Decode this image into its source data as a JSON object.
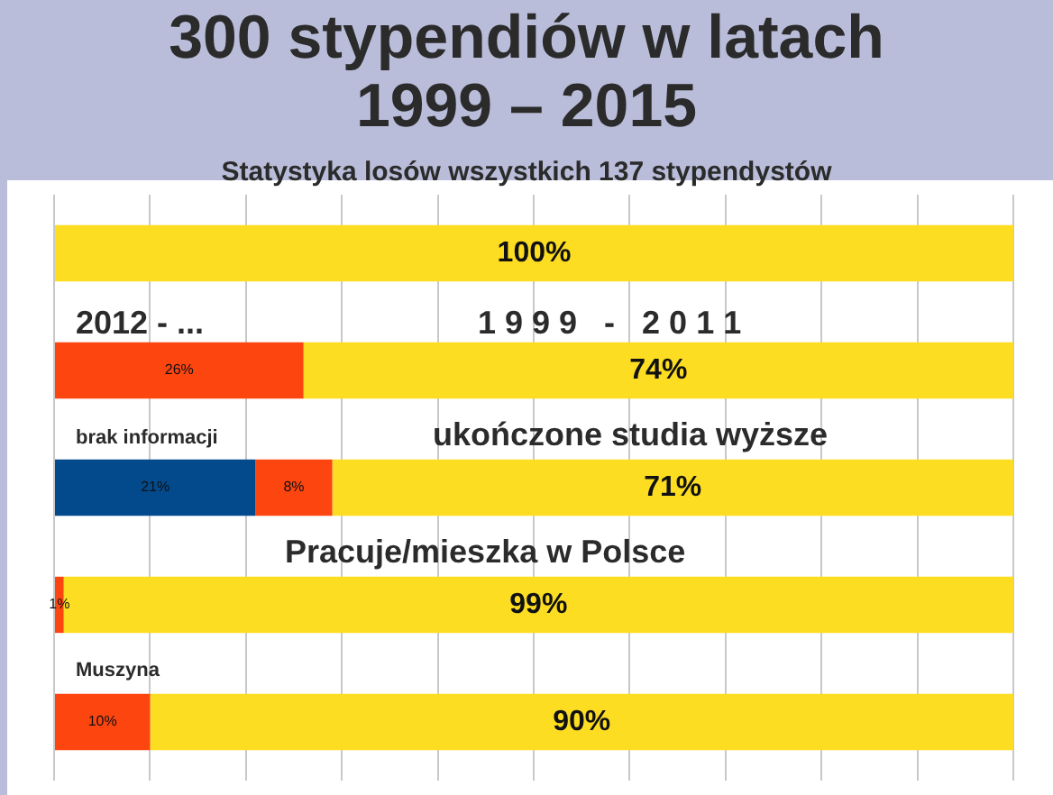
{
  "chart_data": {
    "type": "bar",
    "orientation": "horizontal",
    "stacked": true,
    "title": "300 stypendiów w latach 1999 – 2015",
    "subtitle": "Statystyka losów wszystkich 137 stypendystów",
    "categories": [
      null,
      null,
      null,
      null,
      null
    ],
    "series": [
      {
        "color": "#034a8c",
        "values": [
          null,
          null,
          21,
          null,
          null
        ],
        "value_labels": [
          null,
          null,
          "21%",
          null,
          null
        ]
      },
      {
        "color": "#fd4510",
        "values": [
          null,
          26,
          8,
          1,
          10
        ],
        "value_labels": [
          null,
          "26%",
          "8%",
          "1%",
          "10%"
        ]
      },
      {
        "color": "#fddd22",
        "values": [
          100,
          74,
          71,
          99,
          90
        ],
        "value_labels": [
          "100%",
          "74%",
          "71%",
          "99%",
          "90%"
        ]
      }
    ],
    "grid": "x",
    "legend": false,
    "annotations": [
      "2012 - ...",
      "1 9 9 9   -   2 0 1 1",
      "brak informacji",
      "ukończone studia wyższe",
      "Pracuje/mieszka w Polsce",
      "Muszyna"
    ]
  }
}
